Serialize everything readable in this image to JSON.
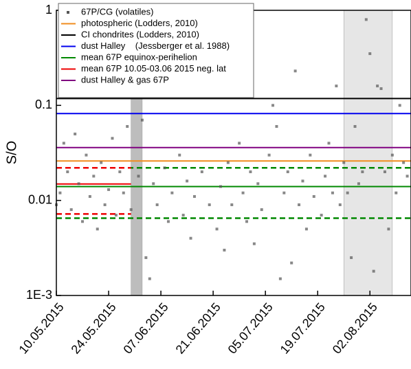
{
  "chart_data": {
    "type": "scatter",
    "y_label": "S/O",
    "log_y": true,
    "ylim": [
      0.001,
      1
    ],
    "yticks": [
      {
        "value": 0.001,
        "label": "1E-3"
      },
      0.01,
      0.1,
      1
    ],
    "xlim": [
      "2015-05-10",
      "2015-08-13"
    ],
    "xticks": [
      {
        "value": "2015-05-10",
        "label": "10.05.2015"
      },
      {
        "value": "2015-05-24",
        "label": "24.05.2015"
      },
      {
        "value": "2015-06-07",
        "label": "07.06.2015"
      },
      {
        "value": "2015-06-21",
        "label": "21.06.2015"
      },
      {
        "value": "2015-07-05",
        "label": "05.07.2015"
      },
      {
        "value": "2015-07-19",
        "label": "19.07.2015"
      },
      {
        "value": "2015-08-02",
        "label": "02.08.2015"
      }
    ],
    "shaded_regions": [
      {
        "start": "2015-05-30",
        "end": "2015-06-02",
        "color": "#bdbdbd"
      },
      {
        "start": "2015-07-26",
        "end": "2015-08-08",
        "color": "#e6e6e6"
      }
    ],
    "series": [
      {
        "name": "67P/CG (volatiles)",
        "color": "#555555",
        "x": [
          "2015-05-10",
          "2015-05-11",
          "2015-05-12",
          "2015-05-13",
          "2015-05-14",
          "2015-05-15",
          "2015-05-16",
          "2015-05-17",
          "2015-05-18",
          "2015-05-19",
          "2015-05-20",
          "2015-05-21",
          "2015-05-22",
          "2015-05-23",
          "2015-05-24",
          "2015-05-25",
          "2015-05-26",
          "2015-05-27",
          "2015-05-28",
          "2015-05-29",
          "2015-05-30",
          "2015-06-01",
          "2015-06-02",
          "2015-06-03",
          "2015-06-04",
          "2015-06-05",
          "2015-06-06",
          "2015-06-08",
          "2015-06-09",
          "2015-06-10",
          "2015-06-12",
          "2015-06-13",
          "2015-06-14",
          "2015-06-15",
          "2015-06-16",
          "2015-06-18",
          "2015-06-20",
          "2015-06-22",
          "2015-06-23",
          "2015-06-24",
          "2015-06-25",
          "2015-06-26",
          "2015-06-28",
          "2015-06-29",
          "2015-06-30",
          "2015-07-01",
          "2015-07-02",
          "2015-07-03",
          "2015-07-04",
          "2015-07-06",
          "2015-07-07",
          "2015-07-08",
          "2015-07-09",
          "2015-07-10",
          "2015-07-11",
          "2015-07-12",
          "2015-07-13",
          "2015-07-14",
          "2015-07-15",
          "2015-07-16",
          "2015-07-17",
          "2015-07-18",
          "2015-07-20",
          "2015-07-21",
          "2015-07-22",
          "2015-07-23",
          "2015-07-24",
          "2015-07-25",
          "2015-07-26",
          "2015-07-27",
          "2015-07-28",
          "2015-07-29",
          "2015-07-30",
          "2015-07-31",
          "2015-08-01",
          "2015-08-02",
          "2015-08-03",
          "2015-08-04",
          "2015-08-05",
          "2015-08-06",
          "2015-08-07",
          "2015-08-08",
          "2015-08-09",
          "2015-08-10",
          "2015-08-11",
          "2015-08-12"
        ],
        "values": [
          0.009,
          0.012,
          0.04,
          0.02,
          0.008,
          0.05,
          0.015,
          0.006,
          0.03,
          0.011,
          0.018,
          0.005,
          0.025,
          0.009,
          0.013,
          0.045,
          0.007,
          0.02,
          0.012,
          0.06,
          0.008,
          0.018,
          0.07,
          0.0025,
          0.0015,
          0.015,
          0.009,
          0.022,
          0.006,
          0.012,
          0.03,
          0.007,
          0.016,
          0.004,
          0.011,
          0.02,
          0.009,
          0.005,
          0.014,
          0.003,
          0.025,
          0.009,
          0.04,
          0.012,
          0.006,
          0.02,
          0.0035,
          0.015,
          0.008,
          0.03,
          0.1,
          0.06,
          0.0015,
          0.012,
          0.02,
          0.0022,
          0.23,
          0.009,
          0.016,
          0.005,
          0.03,
          0.011,
          0.007,
          0.018,
          0.04,
          0.012,
          0.16,
          0.009,
          0.025,
          0.012,
          0.0025,
          0.06,
          0.015,
          0.02,
          0.8,
          0.35,
          0.0018,
          0.16,
          0.15,
          0.02,
          0.005,
          0.03,
          0.012,
          0.1,
          0.025,
          0.018
        ]
      }
    ],
    "reference_lines": [
      {
        "name": "photospheric (Lodders, 2010)",
        "color": "#f08c1e",
        "value": 0.026
      },
      {
        "name": "CI chondrites (Lodders, 2010)",
        "color": "#000000",
        "value": 0.118
      },
      {
        "name": "dust Halley    (Jessberger et al. 1988)",
        "color": "#0000ee",
        "value": 0.082
      },
      {
        "name": "mean 67P equinox-perihelion",
        "color": "#008800",
        "value": 0.014,
        "lower": 0.0065,
        "upper": 0.022
      },
      {
        "name": "mean 67P 10.05-03.06 2015 neg. lat",
        "color": "#ee0000",
        "value": 0.0149,
        "lower": 0.0072,
        "upper": 0.022,
        "end": "2015-05-30"
      },
      {
        "name": "dust Halley & gas 67P",
        "color": "#800080",
        "value": 0.036
      }
    ]
  }
}
